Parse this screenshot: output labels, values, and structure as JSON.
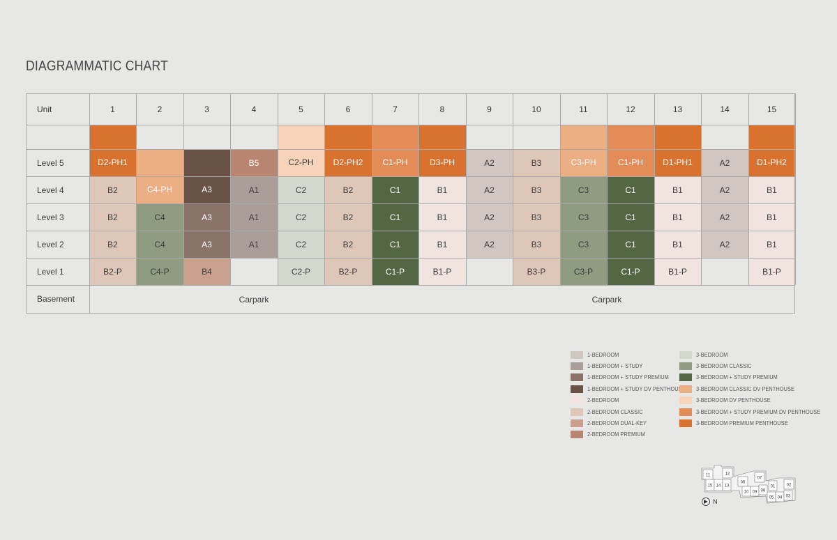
{
  "title": "DIAGRAMMATIC CHART",
  "colors": {
    "1-Bedroom": "#d1c7c1",
    "1-Bedroom + Study": "#ab9e98",
    "1-Bedroom + Study Premium": "#8b7369",
    "1-Bedroom + Study DV Penthouse": "#6b5246",
    "2-Bedroom": "#f1e3dd",
    "2-Bedroom Classic": "#dec7b9",
    "2-Bedroom Dual-Key": "#c9a08e",
    "2-Bedroom Premium": "#b88570",
    "3-Bedroom": "#d3d8cc",
    "3-Bedroom Classic": "#8f9c81",
    "3-Bedroom + Study Premium": "#536745",
    "3-Bedroom Classic DV Penthouse": "#ecae83",
    "3-Bedroom DV Penthouse": "#f7d3b9",
    "3-Bedroom + Study Premium DV Penthouse": "#e38c57",
    "3-Bedroom Premium Penthouse": "#d9722f"
  },
  "table": {
    "header_label": "Unit",
    "units": [
      "1",
      "2",
      "3",
      "4",
      "5",
      "6",
      "7",
      "8",
      "9",
      "10",
      "11",
      "12",
      "13",
      "14",
      "15"
    ],
    "rows": [
      "",
      "Level 5",
      "Level 4",
      "Level 3",
      "Level 2",
      "Level 1",
      "Basement"
    ],
    "basement_labels": [
      "Carpark",
      "Carpark"
    ]
  },
  "cells": [
    {
      "unit": 1,
      "row": 1,
      "span": 2,
      "text": "D2-PH1",
      "type": "3-Bedroom Premium Penthouse",
      "light": true
    },
    {
      "unit": 1,
      "row": 3,
      "span": 1,
      "text": "B2",
      "type": "2-Bedroom Classic"
    },
    {
      "unit": 1,
      "row": 4,
      "span": 1,
      "text": "B2",
      "type": "2-Bedroom Classic"
    },
    {
      "unit": 1,
      "row": 5,
      "span": 1,
      "text": "B2",
      "type": "2-Bedroom Classic"
    },
    {
      "unit": 1,
      "row": 6,
      "span": 1,
      "text": "B2-P",
      "type": "2-Bedroom Classic"
    },
    {
      "unit": 2,
      "row": 2,
      "span": 2,
      "text": "C4-PH",
      "type": "3-Bedroom Classic DV Penthouse",
      "light": true
    },
    {
      "unit": 2,
      "row": 4,
      "span": 1,
      "text": "C4",
      "type": "3-Bedroom Classic"
    },
    {
      "unit": 2,
      "row": 5,
      "span": 1,
      "text": "C4",
      "type": "3-Bedroom Classic"
    },
    {
      "unit": 2,
      "row": 6,
      "span": 1,
      "text": "C4-P",
      "type": "3-Bedroom Classic"
    },
    {
      "unit": 3,
      "row": 2,
      "span": 2,
      "text": "A3",
      "type": "1-Bedroom + Study DV Penthouse",
      "light": true
    },
    {
      "unit": 3,
      "row": 4,
      "span": 1,
      "text": "A3",
      "type": "1-Bedroom + Study Premium",
      "light": true
    },
    {
      "unit": 3,
      "row": 5,
      "span": 1,
      "text": "A3",
      "type": "1-Bedroom + Study Premium",
      "light": true
    },
    {
      "unit": 3,
      "row": 6,
      "span": 1,
      "text": "B4",
      "type": "2-Bedroom Dual-Key"
    },
    {
      "unit": 4,
      "row": 2,
      "span": 1,
      "text": "B5",
      "type": "2-Bedroom Premium",
      "light": true
    },
    {
      "unit": 4,
      "row": 3,
      "span": 1,
      "text": "A1",
      "type": "1-Bedroom + Study"
    },
    {
      "unit": 4,
      "row": 4,
      "span": 1,
      "text": "A1",
      "type": "1-Bedroom + Study"
    },
    {
      "unit": 4,
      "row": 5,
      "span": 1,
      "text": "A1",
      "type": "1-Bedroom + Study"
    },
    {
      "unit": 5,
      "row": 1,
      "span": 2,
      "text": "C2-PH",
      "type": "3-Bedroom DV Penthouse"
    },
    {
      "unit": 5,
      "row": 3,
      "span": 1,
      "text": "C2",
      "type": "3-Bedroom"
    },
    {
      "unit": 5,
      "row": 4,
      "span": 1,
      "text": "C2",
      "type": "3-Bedroom"
    },
    {
      "unit": 5,
      "row": 5,
      "span": 1,
      "text": "C2",
      "type": "3-Bedroom"
    },
    {
      "unit": 5,
      "row": 6,
      "span": 1,
      "text": "C2-P",
      "type": "3-Bedroom"
    },
    {
      "unit": 6,
      "row": 1,
      "span": 2,
      "text": "D2-PH2",
      "type": "3-Bedroom Premium Penthouse",
      "light": true
    },
    {
      "unit": 6,
      "row": 3,
      "span": 1,
      "text": "B2",
      "type": "2-Bedroom Classic"
    },
    {
      "unit": 6,
      "row": 4,
      "span": 1,
      "text": "B2",
      "type": "2-Bedroom Classic"
    },
    {
      "unit": 6,
      "row": 5,
      "span": 1,
      "text": "B2",
      "type": "2-Bedroom Classic"
    },
    {
      "unit": 6,
      "row": 6,
      "span": 1,
      "text": "B2-P",
      "type": "2-Bedroom Classic"
    },
    {
      "unit": 7,
      "row": 1,
      "span": 2,
      "text": "C1-PH",
      "type": "3-Bedroom + Study Premium DV Penthouse",
      "light": true
    },
    {
      "unit": 7,
      "row": 3,
      "span": 1,
      "text": "C1",
      "type": "3-Bedroom + Study Premium",
      "light": true
    },
    {
      "unit": 7,
      "row": 4,
      "span": 1,
      "text": "C1",
      "type": "3-Bedroom + Study Premium",
      "light": true
    },
    {
      "unit": 7,
      "row": 5,
      "span": 1,
      "text": "C1",
      "type": "3-Bedroom + Study Premium",
      "light": true
    },
    {
      "unit": 7,
      "row": 6,
      "span": 1,
      "text": "C1-P",
      "type": "3-Bedroom + Study Premium",
      "light": true
    },
    {
      "unit": 8,
      "row": 1,
      "span": 2,
      "text": "D3-PH",
      "type": "3-Bedroom Premium Penthouse",
      "light": true
    },
    {
      "unit": 8,
      "row": 3,
      "span": 1,
      "text": "B1",
      "type": "2-Bedroom"
    },
    {
      "unit": 8,
      "row": 4,
      "span": 1,
      "text": "B1",
      "type": "2-Bedroom"
    },
    {
      "unit": 8,
      "row": 5,
      "span": 1,
      "text": "B1",
      "type": "2-Bedroom"
    },
    {
      "unit": 8,
      "row": 6,
      "span": 1,
      "text": "B1-P",
      "type": "2-Bedroom"
    },
    {
      "unit": 9,
      "row": 2,
      "span": 1,
      "text": "A2",
      "type": "1-Bedroom"
    },
    {
      "unit": 9,
      "row": 3,
      "span": 1,
      "text": "A2",
      "type": "1-Bedroom"
    },
    {
      "unit": 9,
      "row": 4,
      "span": 1,
      "text": "A2",
      "type": "1-Bedroom"
    },
    {
      "unit": 9,
      "row": 5,
      "span": 1,
      "text": "A2",
      "type": "1-Bedroom"
    },
    {
      "unit": 10,
      "row": 2,
      "span": 1,
      "text": "B3",
      "type": "2-Bedroom Classic"
    },
    {
      "unit": 10,
      "row": 3,
      "span": 1,
      "text": "B3",
      "type": "2-Bedroom Classic"
    },
    {
      "unit": 10,
      "row": 4,
      "span": 1,
      "text": "B3",
      "type": "2-Bedroom Classic"
    },
    {
      "unit": 10,
      "row": 5,
      "span": 1,
      "text": "B3",
      "type": "2-Bedroom Classic"
    },
    {
      "unit": 10,
      "row": 6,
      "span": 1,
      "text": "B3-P",
      "type": "2-Bedroom Classic"
    },
    {
      "unit": 11,
      "row": 1,
      "span": 2,
      "text": "C3-PH",
      "type": "3-Bedroom Classic DV Penthouse",
      "light": true
    },
    {
      "unit": 11,
      "row": 3,
      "span": 1,
      "text": "C3",
      "type": "3-Bedroom Classic"
    },
    {
      "unit": 11,
      "row": 4,
      "span": 1,
      "text": "C3",
      "type": "3-Bedroom Classic"
    },
    {
      "unit": 11,
      "row": 5,
      "span": 1,
      "text": "C3",
      "type": "3-Bedroom Classic"
    },
    {
      "unit": 11,
      "row": 6,
      "span": 1,
      "text": "C3-P",
      "type": "3-Bedroom Classic"
    },
    {
      "unit": 12,
      "row": 1,
      "span": 2,
      "text": "C1-PH",
      "type": "3-Bedroom + Study Premium DV Penthouse",
      "light": true
    },
    {
      "unit": 12,
      "row": 3,
      "span": 1,
      "text": "C1",
      "type": "3-Bedroom + Study Premium",
      "light": true
    },
    {
      "unit": 12,
      "row": 4,
      "span": 1,
      "text": "C1",
      "type": "3-Bedroom + Study Premium",
      "light": true
    },
    {
      "unit": 12,
      "row": 5,
      "span": 1,
      "text": "C1",
      "type": "3-Bedroom + Study Premium",
      "light": true
    },
    {
      "unit": 12,
      "row": 6,
      "span": 1,
      "text": "C1-P",
      "type": "3-Bedroom + Study Premium",
      "light": true
    },
    {
      "unit": 13,
      "row": 1,
      "span": 2,
      "text": "D1-PH1",
      "type": "3-Bedroom Premium Penthouse",
      "light": true
    },
    {
      "unit": 13,
      "row": 3,
      "span": 1,
      "text": "B1",
      "type": "2-Bedroom"
    },
    {
      "unit": 13,
      "row": 4,
      "span": 1,
      "text": "B1",
      "type": "2-Bedroom"
    },
    {
      "unit": 13,
      "row": 5,
      "span": 1,
      "text": "B1",
      "type": "2-Bedroom"
    },
    {
      "unit": 13,
      "row": 6,
      "span": 1,
      "text": "B1-P",
      "type": "2-Bedroom"
    },
    {
      "unit": 14,
      "row": 2,
      "span": 1,
      "text": "A2",
      "type": "1-Bedroom"
    },
    {
      "unit": 14,
      "row": 3,
      "span": 1,
      "text": "A2",
      "type": "1-Bedroom"
    },
    {
      "unit": 14,
      "row": 4,
      "span": 1,
      "text": "A2",
      "type": "1-Bedroom"
    },
    {
      "unit": 14,
      "row": 5,
      "span": 1,
      "text": "A2",
      "type": "1-Bedroom"
    },
    {
      "unit": 15,
      "row": 1,
      "span": 2,
      "text": "D1-PH2",
      "type": "3-Bedroom Premium Penthouse",
      "light": true
    },
    {
      "unit": 15,
      "row": 3,
      "span": 1,
      "text": "B1",
      "type": "2-Bedroom"
    },
    {
      "unit": 15,
      "row": 4,
      "span": 1,
      "text": "B1",
      "type": "2-Bedroom"
    },
    {
      "unit": 15,
      "row": 5,
      "span": 1,
      "text": "B1",
      "type": "2-Bedroom"
    },
    {
      "unit": 15,
      "row": 6,
      "span": 1,
      "text": "B1-P",
      "type": "2-Bedroom"
    }
  ],
  "legend": {
    "column1": [
      {
        "label": "1-BEDROOM",
        "type": "1-Bedroom"
      },
      {
        "label": "1-BEDROOM + STUDY",
        "type": "1-Bedroom + Study"
      },
      {
        "label": "1-BEDROOM + STUDY PREMIUM",
        "type": "1-Bedroom + Study Premium"
      },
      {
        "label": "1-BEDROOM + STUDY DV PENTHOUSE",
        "type": "1-Bedroom + Study DV Penthouse"
      },
      {
        "label": "2-BEDROOM",
        "type": "2-Bedroom"
      },
      {
        "label": "2-BEDROOM CLASSIC",
        "type": "2-Bedroom Classic"
      },
      {
        "label": "2-BEDROOM DUAL-KEY",
        "type": "2-Bedroom Dual-Key"
      },
      {
        "label": "2-BEDROOM PREMIUM",
        "type": "2-Bedroom Premium"
      }
    ],
    "column2": [
      {
        "label": "3-BEDROOM",
        "type": "3-Bedroom"
      },
      {
        "label": "3-BEDROOM CLASSIC",
        "type": "3-Bedroom Classic"
      },
      {
        "label": "3-BEDROOM + STUDY PREMIUM",
        "type": "3-Bedroom + Study Premium"
      },
      {
        "label": "3-BEDROOM CLASSIC DV PENTHOUSE",
        "type": "3-Bedroom Classic DV Penthouse"
      },
      {
        "label": "3-BEDROOM DV PENTHOUSE",
        "type": "3-Bedroom DV Penthouse"
      },
      {
        "label": "3-BEDROOM + STUDY PREMIUM DV PENTHOUSE",
        "type": "3-Bedroom + Study Premium DV Penthouse"
      },
      {
        "label": "3-BEDROOM PREMIUM PENTHOUSE",
        "type": "3-Bedroom Premium Penthouse"
      }
    ]
  },
  "keyplan": {
    "blocks": [
      "11",
      "12",
      "15",
      "14",
      "13",
      "06",
      "07",
      "10",
      "09",
      "08",
      "01",
      "02",
      "05",
      "04",
      "03"
    ],
    "north_label": "N"
  }
}
